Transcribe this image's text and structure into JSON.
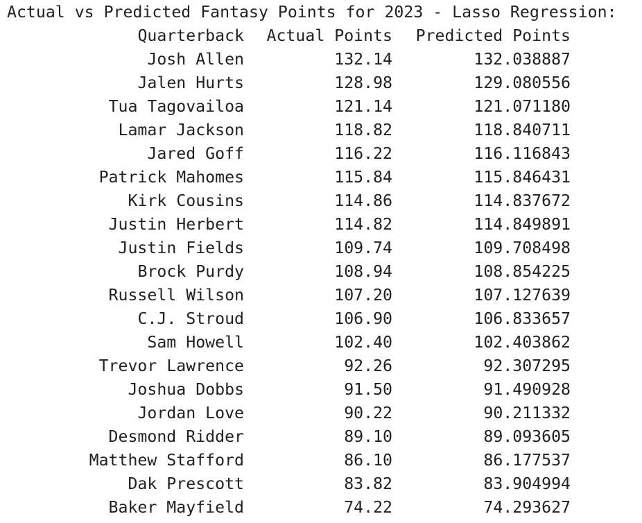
{
  "title": "Actual vs Predicted Fantasy Points for 2023 - Lasso Regression:",
  "columns": [
    "Quarterback",
    "Actual Points",
    "Predicted Points"
  ],
  "rows": [
    {
      "quarterback": "Josh Allen",
      "actual": "132.14",
      "predicted": "132.038887"
    },
    {
      "quarterback": "Jalen Hurts",
      "actual": "128.98",
      "predicted": "129.080556"
    },
    {
      "quarterback": "Tua Tagovailoa",
      "actual": "121.14",
      "predicted": "121.071180"
    },
    {
      "quarterback": "Lamar Jackson",
      "actual": "118.82",
      "predicted": "118.840711"
    },
    {
      "quarterback": "Jared Goff",
      "actual": "116.22",
      "predicted": "116.116843"
    },
    {
      "quarterback": "Patrick Mahomes",
      "actual": "115.84",
      "predicted": "115.846431"
    },
    {
      "quarterback": "Kirk Cousins",
      "actual": "114.86",
      "predicted": "114.837672"
    },
    {
      "quarterback": "Justin Herbert",
      "actual": "114.82",
      "predicted": "114.849891"
    },
    {
      "quarterback": "Justin Fields",
      "actual": "109.74",
      "predicted": "109.708498"
    },
    {
      "quarterback": "Brock Purdy",
      "actual": "108.94",
      "predicted": "108.854225"
    },
    {
      "quarterback": "Russell Wilson",
      "actual": "107.20",
      "predicted": "107.127639"
    },
    {
      "quarterback": "C.J. Stroud",
      "actual": "106.90",
      "predicted": "106.833657"
    },
    {
      "quarterback": "Sam Howell",
      "actual": "102.40",
      "predicted": "102.403862"
    },
    {
      "quarterback": "Trevor Lawrence",
      "actual": "92.26",
      "predicted": "92.307295"
    },
    {
      "quarterback": "Joshua Dobbs",
      "actual": "91.50",
      "predicted": "91.490928"
    },
    {
      "quarterback": "Jordan Love",
      "actual": "90.22",
      "predicted": "90.211332"
    },
    {
      "quarterback": "Desmond Ridder",
      "actual": "89.10",
      "predicted": "89.093605"
    },
    {
      "quarterback": "Matthew Stafford",
      "actual": "86.10",
      "predicted": "86.177537"
    },
    {
      "quarterback": "Dak Prescott",
      "actual": "83.82",
      "predicted": "83.904994"
    },
    {
      "quarterback": "Baker Mayfield",
      "actual": "74.22",
      "predicted": "74.293627"
    }
  ]
}
